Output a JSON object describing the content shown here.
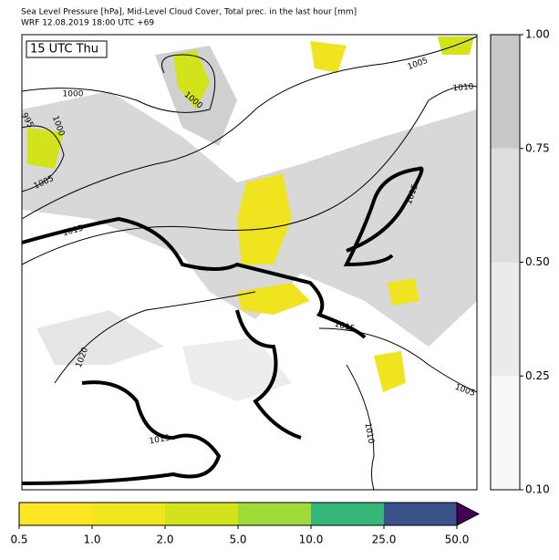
{
  "header": {
    "title": "Sea Level Pressure [hPa], Mid-Level Cloud Cover, Total prec. in the last hour [mm]",
    "subtitle": "WRF 12.08.2019 18:00 UTC +69"
  },
  "map": {
    "time_label": "15 UTC Thu",
    "isobar_labels": [
      "1000",
      "1000",
      "1000",
      "995",
      "1005",
      "1005",
      "1010",
      "1015",
      "1015",
      "1015",
      "1020",
      "1015",
      "1010",
      "1005"
    ]
  },
  "cloud_colorbar": {
    "colors": [
      "#f7f7f7",
      "#ebebeb",
      "#dddddd",
      "#c8c8c8"
    ],
    "ticks": [
      {
        "value": 0.1,
        "label": "0.10"
      },
      {
        "value": 0.25,
        "label": "0.25"
      },
      {
        "value": 0.5,
        "label": "0.50"
      },
      {
        "value": 0.75,
        "label": "0.75"
      },
      {
        "value": 1,
        "label": "1.00"
      }
    ]
  },
  "precip_colorbar": {
    "colors": [
      "#fde725",
      "#f1e51d",
      "#d2e21b",
      "#a0da39",
      "#35b779",
      "#3b528b"
    ],
    "extend_color": "#440154",
    "ticks": [
      0.5,
      {
        "value": 1,
        "label": "1.0"
      },
      {
        "value": 2,
        "label": "2.0"
      },
      {
        "value": 5,
        "label": "5.0"
      },
      {
        "value": 10,
        "label": "10.0"
      },
      {
        "value": 25,
        "label": "25.0"
      },
      {
        "value": 50,
        "label": "50.0"
      }
    ]
  }
}
